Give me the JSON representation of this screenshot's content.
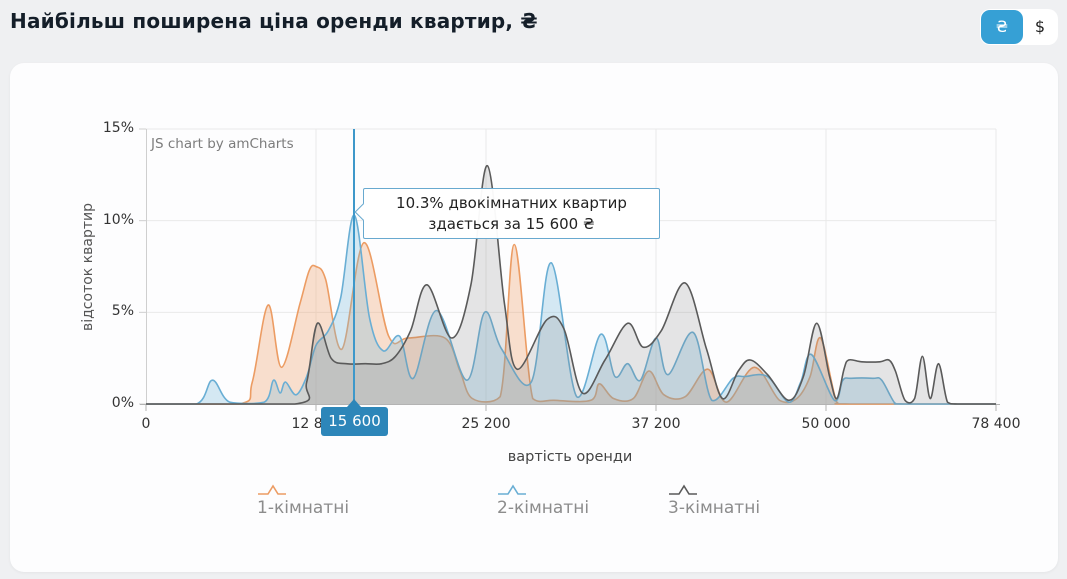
{
  "header": {
    "title": "Найбільш поширена ціна оренди квартир, ₴",
    "currency_toggle": {
      "uah_label": "₴",
      "usd_label": "$",
      "active": "uah",
      "active_color": "#36a0d5"
    }
  },
  "chart": {
    "credit": "JS chart by amCharts",
    "cursor": {
      "value": 15600,
      "label": "15 600",
      "color": "#2d86b9"
    },
    "tooltip": {
      "line1": "10.3% двокімнатних квартир",
      "line2": "здається за 15 600 ₴"
    }
  },
  "chart_data": {
    "type": "area",
    "title": "Найбільш поширена ціна оренди квартир, ₴",
    "xlabel": "вартість оренди",
    "ylabel": "відсоток квартир",
    "x_ticks": [
      0,
      12800,
      25200,
      37200,
      50000,
      78400
    ],
    "x_tick_labels": [
      "0",
      "12 800",
      "25 200",
      "37 200",
      "50 000",
      "78 400"
    ],
    "y_ticks": [
      0,
      5,
      10,
      15
    ],
    "y_tick_labels": [
      "0%",
      "5%",
      "10%",
      "15%"
    ],
    "ylim": [
      0,
      15
    ],
    "grid": "on",
    "legend_position": "bottom",
    "axis_note": "x ticks are equally spaced; values between ticks interpolate piecewise-linearly",
    "highlight": {
      "series": "2-кімнатні",
      "x": 15600,
      "y": 10.3
    },
    "series": [
      {
        "name": "1-кімнатні",
        "color": "#ec9c63",
        "fill": "rgba(238,160,102,0.32)",
        "points": [
          [
            0,
            0
          ],
          [
            7000,
            0
          ],
          [
            8000,
            1.2
          ],
          [
            9200,
            5.4
          ],
          [
            10200,
            2.0
          ],
          [
            11600,
            5.5
          ],
          [
            12300,
            7.3
          ],
          [
            12800,
            7.5
          ],
          [
            13500,
            6.8
          ],
          [
            14700,
            3.0
          ],
          [
            16300,
            8.8
          ],
          [
            18100,
            3.7
          ],
          [
            19500,
            3.6
          ],
          [
            22200,
            3.6
          ],
          [
            23300,
            1.8
          ],
          [
            24200,
            0.3
          ],
          [
            26200,
            0.4
          ],
          [
            27200,
            8.7
          ],
          [
            28500,
            0.3
          ],
          [
            30000,
            0.2
          ],
          [
            32600,
            0.2
          ],
          [
            33200,
            1.1
          ],
          [
            34200,
            0.3
          ],
          [
            35600,
            0.3
          ],
          [
            36700,
            1.8
          ],
          [
            37800,
            0.5
          ],
          [
            39400,
            0.4
          ],
          [
            41100,
            1.9
          ],
          [
            42500,
            0.1
          ],
          [
            44600,
            2.0
          ],
          [
            46500,
            0.2
          ],
          [
            47800,
            0.3
          ],
          [
            48800,
            1.5
          ],
          [
            49600,
            3.6
          ],
          [
            51800,
            0.1
          ],
          [
            54000,
            0
          ],
          [
            78400,
            0
          ]
        ]
      },
      {
        "name": "2-кімнатні",
        "color": "#69aed4",
        "fill": "rgba(120,186,220,0.30)",
        "points": [
          [
            0,
            0
          ],
          [
            3800,
            0
          ],
          [
            5000,
            1.3
          ],
          [
            6300,
            0.1
          ],
          [
            8900,
            0.1
          ],
          [
            9600,
            1.3
          ],
          [
            10100,
            0.6
          ],
          [
            10500,
            1.2
          ],
          [
            11300,
            0.5
          ],
          [
            12100,
            1.5
          ],
          [
            12800,
            3.2
          ],
          [
            13700,
            4.0
          ],
          [
            14600,
            5.8
          ],
          [
            15600,
            10.3
          ],
          [
            16700,
            4.7
          ],
          [
            17700,
            2.9
          ],
          [
            18900,
            3.7
          ],
          [
            19900,
            1.4
          ],
          [
            21600,
            5.1
          ],
          [
            23800,
            1.3
          ],
          [
            25100,
            5.0
          ],
          [
            26300,
            3.0
          ],
          [
            28400,
            1.2
          ],
          [
            29800,
            7.7
          ],
          [
            31600,
            0.4
          ],
          [
            33300,
            3.8
          ],
          [
            34300,
            1.5
          ],
          [
            35200,
            2.2
          ],
          [
            36100,
            1.3
          ],
          [
            37200,
            3.6
          ],
          [
            38100,
            1.6
          ],
          [
            40000,
            3.9
          ],
          [
            41400,
            0.2
          ],
          [
            43000,
            1.4
          ],
          [
            43900,
            1.5
          ],
          [
            45600,
            1.5
          ],
          [
            47200,
            0.1
          ],
          [
            48100,
            1.2
          ],
          [
            48900,
            2.7
          ],
          [
            51400,
            0.2
          ],
          [
            52800,
            1.3
          ],
          [
            54200,
            1.4
          ],
          [
            57800,
            1.4
          ],
          [
            59300,
            1.3
          ],
          [
            61500,
            0.05
          ],
          [
            63000,
            0
          ],
          [
            78400,
            0
          ]
        ]
      },
      {
        "name": "3-кімнатні",
        "color": "#5a5a5a",
        "fill": "rgba(130,130,130,0.20)",
        "points": [
          [
            0,
            0
          ],
          [
            11200,
            0
          ],
          [
            12100,
            1.2
          ],
          [
            12900,
            4.4
          ],
          [
            13900,
            2.5
          ],
          [
            15000,
            2.2
          ],
          [
            16400,
            2.2
          ],
          [
            17600,
            2.2
          ],
          [
            18600,
            2.6
          ],
          [
            19700,
            4.0
          ],
          [
            20900,
            6.5
          ],
          [
            22700,
            3.6
          ],
          [
            24100,
            6.5
          ],
          [
            25300,
            13.0
          ],
          [
            26500,
            5.5
          ],
          [
            27400,
            1.9
          ],
          [
            29500,
            4.6
          ],
          [
            30700,
            4.1
          ],
          [
            32000,
            0.6
          ],
          [
            33600,
            2.4
          ],
          [
            35200,
            4.4
          ],
          [
            36300,
            3.1
          ],
          [
            37600,
            4.0
          ],
          [
            39400,
            6.6
          ],
          [
            41000,
            3.0
          ],
          [
            42200,
            0.3
          ],
          [
            43400,
            1.8
          ],
          [
            44300,
            2.4
          ],
          [
            45600,
            1.6
          ],
          [
            47200,
            0.2
          ],
          [
            48300,
            1.5
          ],
          [
            49300,
            4.4
          ],
          [
            50600,
            1.5
          ],
          [
            51800,
            0.3
          ],
          [
            53000,
            1.9
          ],
          [
            53800,
            2.4
          ],
          [
            56000,
            2.3
          ],
          [
            59000,
            2.3
          ],
          [
            60500,
            2.4
          ],
          [
            61600,
            1.8
          ],
          [
            63200,
            0.2
          ],
          [
            64800,
            0.3
          ],
          [
            66100,
            2.6
          ],
          [
            67400,
            0.3
          ],
          [
            68800,
            2.2
          ],
          [
            70300,
            0.1
          ],
          [
            72000,
            0
          ],
          [
            78400,
            0
          ]
        ]
      }
    ]
  }
}
